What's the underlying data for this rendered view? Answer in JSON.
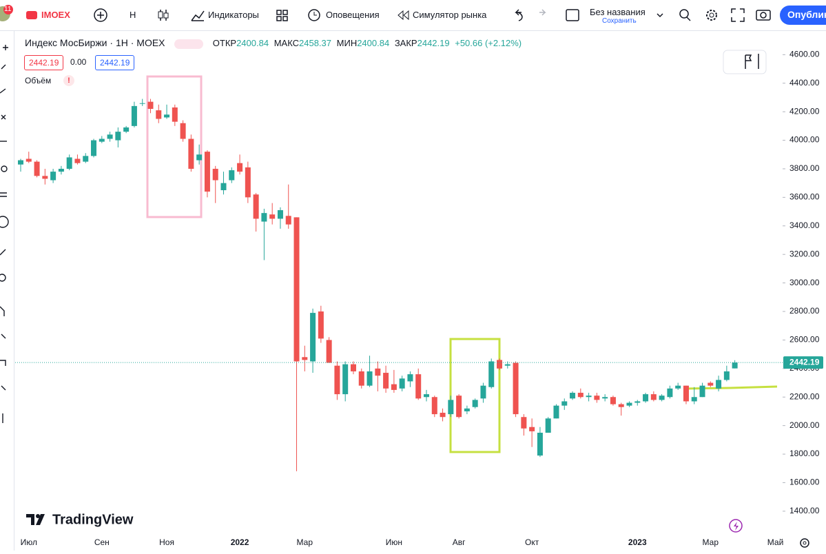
{
  "toolbar": {
    "badge": "11",
    "symbol": "IMOEX",
    "interval": "H",
    "indicators": "Индикаторы",
    "alerts": "Оповещения",
    "replay": "Симулятор рынка",
    "layout_name": "Без названия",
    "save": "Сохранить",
    "publish": "Опублик"
  },
  "legend": {
    "title": "Индекс МосБиржи · 1Н · MOEX",
    "open_label": "ОТКР",
    "high_label": "МАКС",
    "low_label": "МИН",
    "close_label": "ЗАКР",
    "change": "+50.66 (+2.12%)",
    "sell_price": "2442.19",
    "spread": "0.00",
    "buy_price": "2442.19",
    "volume": "Объём",
    "volume_warning": "!"
  },
  "watermark": "TradingView",
  "chart_data": {
    "type": "candlestick",
    "categories": [
      null,
      "Июл",
      null,
      null,
      null,
      null,
      null,
      null,
      null,
      null,
      "Сен",
      null,
      null,
      null,
      null,
      null,
      null,
      null,
      "Ноя",
      null,
      null,
      null,
      null,
      null,
      null,
      null,
      null,
      "2022",
      null,
      null,
      null,
      null,
      null,
      null,
      null,
      "Мар",
      null,
      null,
      null,
      null,
      null,
      null,
      null,
      null,
      null,
      null,
      "Июн",
      null,
      null,
      null,
      null,
      null,
      null,
      null,
      "Авг",
      null,
      null,
      null,
      null,
      null,
      null,
      null,
      null,
      "Окт",
      null,
      null,
      null,
      null,
      null,
      null,
      null,
      null,
      null,
      null,
      null,
      null,
      "2023",
      null,
      null,
      null,
      null,
      null,
      null,
      null,
      null,
      "Мар",
      null,
      null,
      null,
      null,
      null,
      null,
      null,
      "Май"
    ],
    "open": [
      3830,
      3870,
      3850,
      3750,
      3720,
      3780,
      3800,
      3870,
      3850,
      3890,
      3990,
      4010,
      4000,
      4060,
      4100,
      4260,
      4270,
      4210,
      4160,
      4230,
      4120,
      4010,
      3860,
      3920,
      3800,
      3650,
      3720,
      3840,
      3810,
      3620,
      3430,
      3480,
      3450,
      3470,
      3460,
      2480,
      2450,
      2800,
      2600,
      2420,
      2220,
      2430,
      2380,
      2280,
      2400,
      2370,
      2290,
      2260,
      2310,
      2360,
      2200,
      2200,
      2090,
      2080,
      2210,
      2100,
      2130,
      2190,
      2270,
      2460,
      2420,
      2440,
      2060,
      1990,
      1790,
      1950,
      2050,
      2140,
      2190,
      2230,
      2200,
      2210,
      2190,
      2200,
      2150,
      2140,
      2160,
      2170,
      2220,
      2180,
      2200,
      2260,
      2280,
      2170,
      2200,
      2300,
      2260,
      2320,
      2400.84,
      null,
      null,
      null,
      null,
      null
    ],
    "high": [
      3870,
      3920,
      3860,
      3800,
      3800,
      3820,
      3900,
      3900,
      3910,
      4010,
      4030,
      4060,
      4090,
      4100,
      4270,
      4290,
      4290,
      4250,
      4250,
      4250,
      4140,
      4040,
      3970,
      3930,
      3820,
      3780,
      3810,
      3900,
      3850,
      3630,
      3520,
      3560,
      3530,
      3690,
      3460,
      2560,
      2820,
      2840,
      2620,
      2450,
      2450,
      2450,
      2400,
      2490,
      2450,
      2420,
      2390,
      2350,
      2380,
      2400,
      2250,
      2210,
      2120,
      2210,
      2220,
      2140,
      2190,
      2300,
      2470,
      2470,
      2450,
      2450,
      2080,
      2050,
      1990,
      2060,
      2150,
      2190,
      2240,
      2260,
      2230,
      2230,
      2220,
      2210,
      2160,
      2170,
      2180,
      2230,
      2240,
      2220,
      2280,
      2300,
      2280,
      2270,
      2300,
      2310,
      2350,
      2420,
      2458.37,
      null,
      null,
      null,
      null,
      null
    ],
    "low": [
      3780,
      3840,
      3740,
      3690,
      3700,
      3760,
      3790,
      3830,
      3840,
      3880,
      3980,
      3990,
      3950,
      4050,
      4090,
      4240,
      4190,
      4120,
      4150,
      4100,
      3990,
      3780,
      3830,
      3600,
      3560,
      3620,
      3700,
      3760,
      3560,
      3360,
      3160,
      3410,
      3380,
      3380,
      1680,
      2380,
      2370,
      2580,
      2440,
      2180,
      2170,
      2360,
      2260,
      2270,
      2240,
      2230,
      2230,
      2240,
      2270,
      2180,
      2170,
      2060,
      2030,
      2060,
      2050,
      2080,
      2120,
      2160,
      2260,
      2390,
      2400,
      2060,
      1930,
      1850,
      1780,
      1950,
      2050,
      2110,
      2180,
      2190,
      2170,
      2160,
      2170,
      2140,
      2070,
      2130,
      2140,
      2160,
      2170,
      2170,
      2190,
      2250,
      2150,
      2150,
      2200,
      2270,
      2240,
      2310,
      2400.84,
      null,
      null,
      null,
      null,
      null
    ],
    "close": [
      3860,
      3850,
      3750,
      3730,
      3780,
      3800,
      3880,
      3840,
      3890,
      4000,
      4010,
      4040,
      4060,
      4090,
      4240,
      4260,
      4220,
      4150,
      4180,
      4130,
      4010,
      3800,
      3900,
      3640,
      3720,
      3700,
      3790,
      3780,
      3600,
      3450,
      3490,
      3450,
      3510,
      3410,
      2450,
      2460,
      2790,
      2610,
      2440,
      2220,
      2430,
      2380,
      2280,
      2380,
      2350,
      2260,
      2250,
      2330,
      2360,
      2190,
      2220,
      2080,
      2060,
      2180,
      2060,
      2120,
      2180,
      2280,
      2450,
      2400,
      2430,
      2080,
      1980,
      1960,
      1950,
      2050,
      2140,
      2170,
      2230,
      2200,
      2210,
      2180,
      2200,
      2150,
      2130,
      2160,
      2170,
      2220,
      2180,
      2210,
      2260,
      2280,
      2170,
      2200,
      2280,
      2280,
      2320,
      2380,
      2442.19,
      null,
      null,
      null,
      null,
      null
    ],
    "up_color": "#26a69a",
    "down_color": "#ef5350",
    "ylim": [
      1240,
      4790
    ],
    "yticks": [
      {
        "value": 1400,
        "label": "1400.00"
      },
      {
        "value": 1600,
        "label": "1600.00"
      },
      {
        "value": 1800,
        "label": "1800.00"
      },
      {
        "value": 2000,
        "label": "2000.00"
      },
      {
        "value": 2200,
        "label": "2200.00"
      },
      {
        "value": 2400,
        "label": "2400.00"
      },
      {
        "value": 2600,
        "label": "2600.00"
      },
      {
        "value": 2800,
        "label": "2800.00"
      },
      {
        "value": 3000,
        "label": "3000.00"
      },
      {
        "value": 3200,
        "label": "3200.00"
      },
      {
        "value": 3400,
        "label": "3400.00"
      },
      {
        "value": 3600,
        "label": "3600.00"
      },
      {
        "value": 3800,
        "label": "3800.00"
      },
      {
        "value": 4000,
        "label": "4000.00"
      },
      {
        "value": 4200,
        "label": "4200.00"
      },
      {
        "value": 4400,
        "label": "4400.00"
      },
      {
        "value": 4600,
        "label": "4600.00"
      }
    ]
  }
}
